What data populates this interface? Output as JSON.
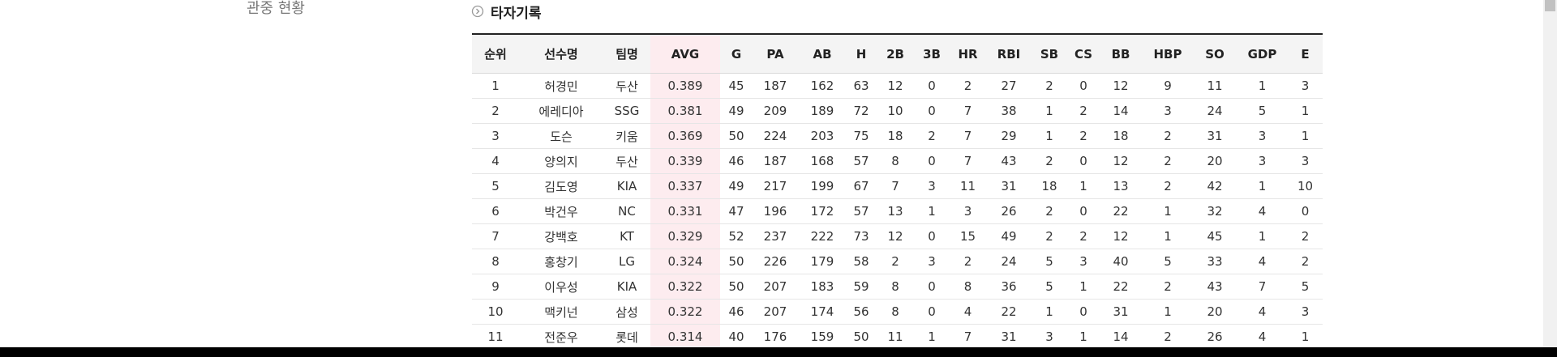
{
  "sidebar": {
    "menu_item": "관중 현황"
  },
  "section": {
    "title": "타자기록",
    "icon": "circle-chevron-right-icon"
  },
  "table": {
    "headers": [
      "순위",
      "선수명",
      "팀명",
      "AVG",
      "G",
      "PA",
      "AB",
      "H",
      "2B",
      "3B",
      "HR",
      "RBI",
      "SB",
      "CS",
      "BB",
      "HBP",
      "SO",
      "GDP",
      "E"
    ],
    "rows": [
      [
        "1",
        "허경민",
        "두산",
        "0.389",
        "45",
        "187",
        "162",
        "63",
        "12",
        "0",
        "2",
        "27",
        "2",
        "0",
        "12",
        "9",
        "11",
        "1",
        "3"
      ],
      [
        "2",
        "에레디아",
        "SSG",
        "0.381",
        "49",
        "209",
        "189",
        "72",
        "10",
        "0",
        "7",
        "38",
        "1",
        "2",
        "14",
        "3",
        "24",
        "5",
        "1"
      ],
      [
        "3",
        "도슨",
        "키움",
        "0.369",
        "50",
        "224",
        "203",
        "75",
        "18",
        "2",
        "7",
        "29",
        "1",
        "2",
        "18",
        "2",
        "31",
        "3",
        "1"
      ],
      [
        "4",
        "양의지",
        "두산",
        "0.339",
        "46",
        "187",
        "168",
        "57",
        "8",
        "0",
        "7",
        "43",
        "2",
        "0",
        "12",
        "2",
        "20",
        "3",
        "3"
      ],
      [
        "5",
        "김도영",
        "KIA",
        "0.337",
        "49",
        "217",
        "199",
        "67",
        "7",
        "3",
        "11",
        "31",
        "18",
        "1",
        "13",
        "2",
        "42",
        "1",
        "10"
      ],
      [
        "6",
        "박건우",
        "NC",
        "0.331",
        "47",
        "196",
        "172",
        "57",
        "13",
        "1",
        "3",
        "26",
        "2",
        "0",
        "22",
        "1",
        "32",
        "4",
        "0"
      ],
      [
        "7",
        "강백호",
        "KT",
        "0.329",
        "52",
        "237",
        "222",
        "73",
        "12",
        "0",
        "15",
        "49",
        "2",
        "2",
        "12",
        "1",
        "45",
        "1",
        "2"
      ],
      [
        "8",
        "홍창기",
        "LG",
        "0.324",
        "50",
        "226",
        "179",
        "58",
        "2",
        "3",
        "2",
        "24",
        "5",
        "3",
        "40",
        "5",
        "33",
        "4",
        "2"
      ],
      [
        "9",
        "이우성",
        "KIA",
        "0.322",
        "50",
        "207",
        "183",
        "59",
        "8",
        "0",
        "8",
        "36",
        "5",
        "1",
        "22",
        "2",
        "43",
        "7",
        "5"
      ],
      [
        "10",
        "맥키넌",
        "삼성",
        "0.322",
        "46",
        "207",
        "174",
        "56",
        "8",
        "0",
        "4",
        "22",
        "1",
        "0",
        "31",
        "1",
        "20",
        "4",
        "3"
      ],
      [
        "11",
        "전준우",
        "롯데",
        "0.314",
        "40",
        "176",
        "159",
        "50",
        "11",
        "1",
        "7",
        "31",
        "3",
        "1",
        "14",
        "2",
        "26",
        "4",
        "1"
      ]
    ]
  },
  "colors": {
    "avg_highlight": "#fdecef",
    "header_bg": "#f4f4f4",
    "top_border": "#222222"
  }
}
